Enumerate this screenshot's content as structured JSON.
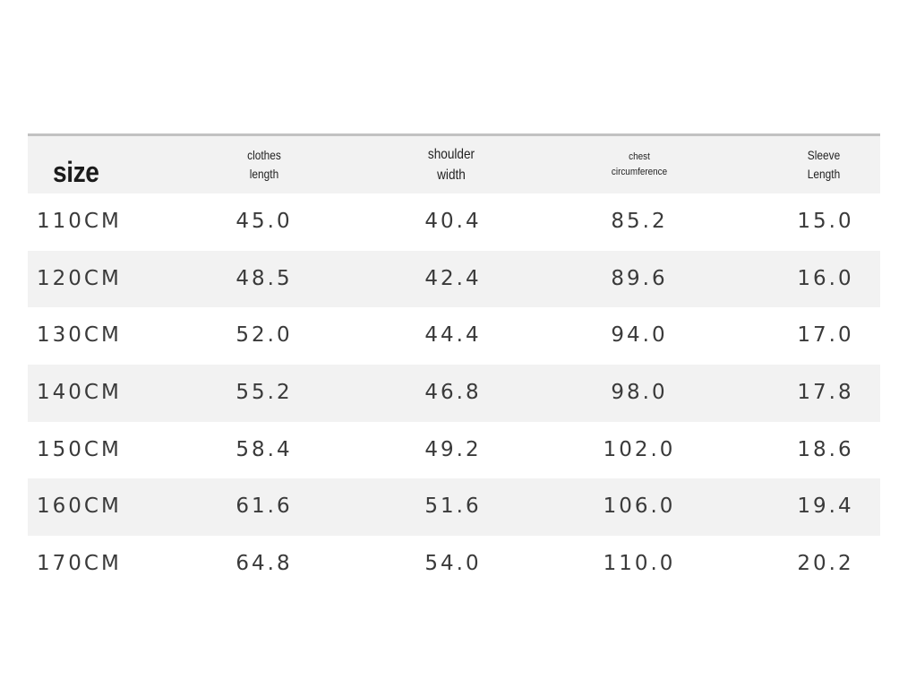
{
  "table": {
    "headers": {
      "size": "size",
      "clothes_length": [
        "clothes",
        "length"
      ],
      "shoulder_width": [
        "shoulder",
        "width"
      ],
      "chest_circumference": [
        "chest",
        "circumference"
      ],
      "sleeve_length": [
        "Sleeve",
        "Length"
      ]
    },
    "rows": [
      {
        "size": "110CM",
        "clothes_length": "45.0",
        "shoulder_width": "40.4",
        "chest_circumference": "85.2",
        "sleeve_length": "15.0"
      },
      {
        "size": "120CM",
        "clothes_length": "48.5",
        "shoulder_width": "42.4",
        "chest_circumference": "89.6",
        "sleeve_length": "16.0"
      },
      {
        "size": "130CM",
        "clothes_length": "52.0",
        "shoulder_width": "44.4",
        "chest_circumference": "94.0",
        "sleeve_length": "17.0"
      },
      {
        "size": "140CM",
        "clothes_length": "55.2",
        "shoulder_width": "46.8",
        "chest_circumference": "98.0",
        "sleeve_length": "17.8"
      },
      {
        "size": "150CM",
        "clothes_length": "58.4",
        "shoulder_width": "49.2",
        "chest_circumference": "102.0",
        "sleeve_length": "18.6"
      },
      {
        "size": "160CM",
        "clothes_length": "61.6",
        "shoulder_width": "51.6",
        "chest_circumference": "106.0",
        "sleeve_length": "19.4"
      },
      {
        "size": "170CM",
        "clothes_length": "64.8",
        "shoulder_width": "54.0",
        "chest_circumference": "110.0",
        "sleeve_length": "20.2"
      }
    ]
  },
  "colors": {
    "header_background": "#f2f2f2",
    "stripe_background": "#f2f2f2",
    "top_rule": "#c2c2c2",
    "text": "#3a3a3a"
  }
}
